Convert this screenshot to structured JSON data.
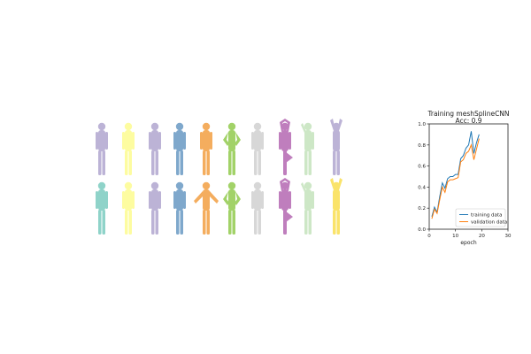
{
  "figure": {
    "silhouettes": {
      "rows": [
        {
          "label": "top",
          "items": [
            {
              "pose": "standing-arms-down",
              "color": "#bcb3d6"
            },
            {
              "pose": "standing-arms-down",
              "color": "#fdfca0"
            },
            {
              "pose": "standing-arms-down",
              "color": "#bcb3d6"
            },
            {
              "pose": "standing-arms-down",
              "color": "#7fa8cc"
            },
            {
              "pose": "standing-arms-down",
              "color": "#f4ad5e"
            },
            {
              "pose": "standing-hand-on-hip",
              "color": "#a2d268"
            },
            {
              "pose": "standing-arms-down",
              "color": "#d7d7d7"
            },
            {
              "pose": "tree-pose",
              "color": "#bf7ebd"
            },
            {
              "pose": "standing-arm-raised",
              "color": "#cde7c6"
            },
            {
              "pose": "arms-overhead",
              "color": "#bcb3d6"
            }
          ]
        },
        {
          "label": "bottom",
          "items": [
            {
              "pose": "standing-arms-down",
              "color": "#8fd3c9"
            },
            {
              "pose": "standing-arms-down",
              "color": "#fdfca0"
            },
            {
              "pose": "standing-arms-down",
              "color": "#bcb3d6"
            },
            {
              "pose": "standing-arms-down",
              "color": "#7fa8cc"
            },
            {
              "pose": "standing-arms-out",
              "color": "#f4ad5e"
            },
            {
              "pose": "standing-hand-on-hip",
              "color": "#a2d268"
            },
            {
              "pose": "standing-arms-down",
              "color": "#d7d7d7"
            },
            {
              "pose": "tree-pose",
              "color": "#bf7ebd"
            },
            {
              "pose": "standing-arm-raised",
              "color": "#cde7c6"
            },
            {
              "pose": "arms-overhead",
              "color": "#fae36a"
            }
          ]
        }
      ]
    }
  },
  "chart_data": {
    "type": "line",
    "title": "Training meshSplineCNN",
    "subtitle": "Acc: 0.9",
    "xlabel": "epoch",
    "ylabel": "",
    "xlim": [
      0,
      30
    ],
    "ylim": [
      0,
      1.0
    ],
    "xticks": [
      0,
      10,
      20,
      30
    ],
    "yticks": [
      0.0,
      0.2,
      0.4,
      0.6,
      0.8,
      1.0
    ],
    "xtick_labels": [
      "0",
      "10",
      "20",
      "30"
    ],
    "ytick_labels": [
      "0.0",
      "0.2",
      "0.4",
      "0.6",
      "0.8",
      "1.0"
    ],
    "legend_position": "lower-right",
    "grid": false,
    "series": [
      {
        "name": "training data",
        "color": "#1f77b4",
        "x": [
          1,
          2,
          3,
          4,
          5,
          6,
          7,
          8,
          9,
          10,
          11,
          12,
          13,
          14,
          15,
          16,
          17,
          18,
          19
        ],
        "y": [
          0.12,
          0.21,
          0.16,
          0.31,
          0.44,
          0.39,
          0.48,
          0.5,
          0.5,
          0.52,
          0.52,
          0.67,
          0.7,
          0.77,
          0.8,
          0.93,
          0.72,
          0.82,
          0.9
        ]
      },
      {
        "name": "validation data",
        "color": "#ff7f0e",
        "x": [
          1,
          2,
          3,
          4,
          5,
          6,
          7,
          8,
          9,
          10,
          11,
          12,
          13,
          14,
          15,
          16,
          17,
          18,
          19
        ],
        "y": [
          0.1,
          0.19,
          0.15,
          0.28,
          0.4,
          0.35,
          0.45,
          0.47,
          0.47,
          0.48,
          0.49,
          0.64,
          0.66,
          0.72,
          0.74,
          0.8,
          0.66,
          0.76,
          0.86
        ]
      }
    ]
  }
}
